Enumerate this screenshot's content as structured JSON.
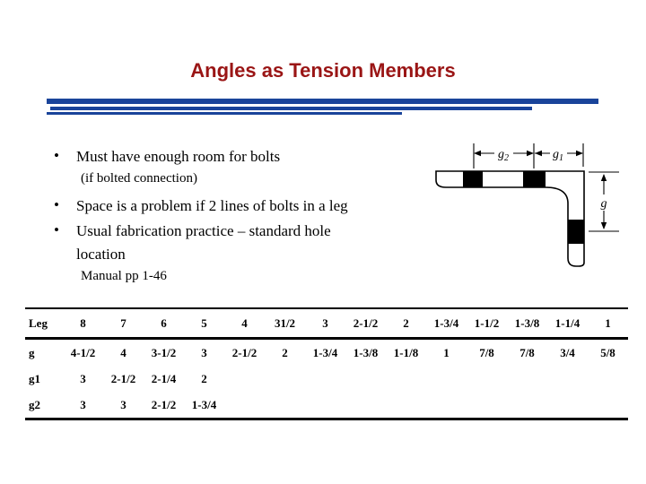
{
  "title": "Angles as Tension Members",
  "bullet_char": "•",
  "bullets": [
    {
      "text": "Must have enough room for bolts",
      "sub": "(if bolted connection)"
    },
    {
      "text": "Space is a problem if 2 lines of bolts in a leg"
    },
    {
      "text": "Usual fabrication practice – standard hole location",
      "sub": "Manual pp 1-46"
    }
  ],
  "diagram": {
    "gauge_top_left_base": "g",
    "gauge_top_left_sub": "2",
    "gauge_top_right_base": "g",
    "gauge_top_right_sub": "1",
    "gauge_side": "g"
  },
  "table": {
    "header": [
      "Leg",
      "8",
      "7",
      "6",
      "5",
      "4",
      "31/2",
      "3",
      "2-1/2",
      "2",
      "1-3/4",
      "1-1/2",
      "1-3/8",
      "1-1/4",
      "1"
    ],
    "rows": [
      [
        "g",
        "4-1/2",
        "4",
        "3-1/2",
        "3",
        "2-1/2",
        "2",
        "1-3/4",
        "1-3/8",
        "1-1/8",
        "1",
        "7/8",
        "7/8",
        "3/4",
        "5/8"
      ],
      [
        "g1",
        "3",
        "2-1/2",
        "2-1/4",
        "2",
        "",
        "",
        "",
        "",
        "",
        "",
        "",
        "",
        "",
        ""
      ],
      [
        "g2",
        "3",
        "3",
        "2-1/2",
        "1-3/4",
        "",
        "",
        "",
        "",
        "",
        "",
        "",
        "",
        "",
        ""
      ]
    ]
  },
  "colors": {
    "title_red": "#9a1515",
    "line_blue": "#1a449a"
  }
}
